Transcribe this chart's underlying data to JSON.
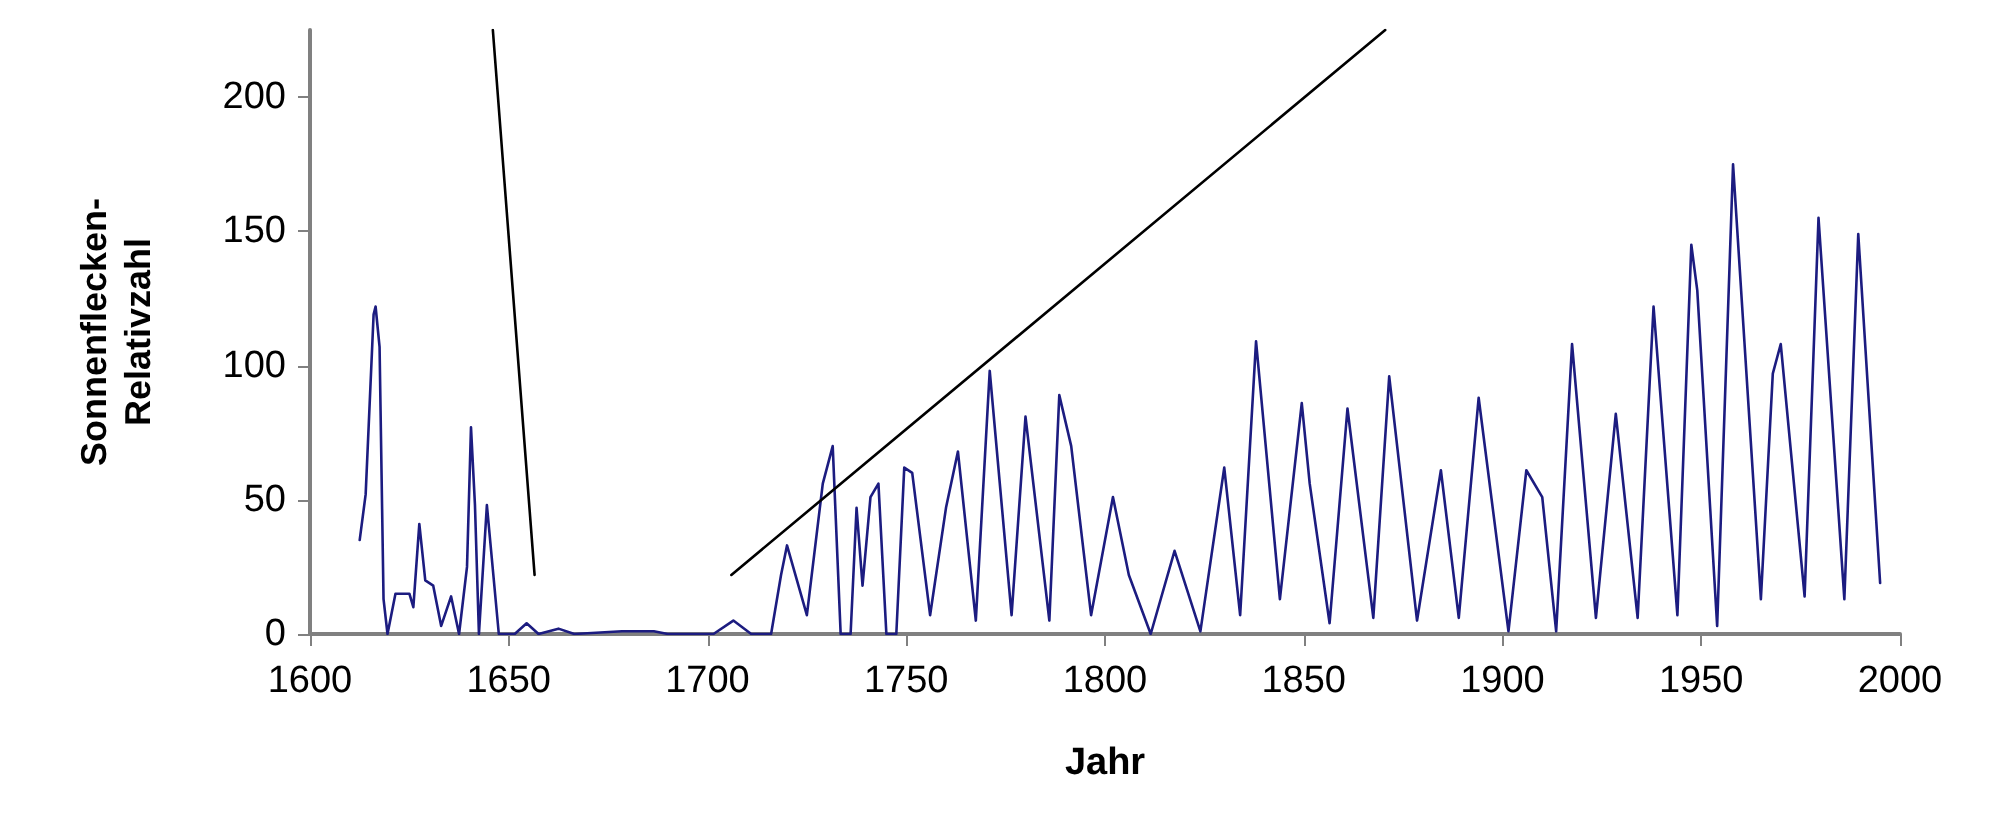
{
  "chart_data": {
    "type": "line",
    "xlabel": "Jahr",
    "ylabel": "Sonnenflecken-\nRelativzahl",
    "xlim": [
      1600,
      2000
    ],
    "xticks": [
      1600,
      1650,
      1700,
      1750,
      1800,
      1850,
      1900,
      1950,
      2000
    ],
    "ylim": [
      0,
      225
    ],
    "yticks": [
      0,
      50,
      100,
      150,
      200
    ],
    "grid": false,
    "marker": "none",
    "line_style": "solid",
    "series": [
      {
        "color": "#1c1c80",
        "x": [
          1612.5,
          1614,
          1616,
          1616.5,
          1617.5,
          1618.5,
          1619.5,
          1621.5,
          1625,
          1626,
          1627.5,
          1629,
          1631,
          1633,
          1635.5,
          1637.5,
          1639.5,
          1640.5,
          1641.5,
          1642.5,
          1644.5,
          1647.5,
          1651.5,
          1654.5,
          1657.5,
          1662.5,
          1666.5,
          1678.5,
          1686.5,
          1690,
          1701.5,
          1706.5,
          1711,
          1716,
          1718.5,
          1720,
          1725,
          1729,
          1731.5,
          1733.5,
          1736,
          1737.5,
          1739,
          1741,
          1743,
          1745,
          1747.5,
          1749.5,
          1751.5,
          1756,
          1760,
          1763,
          1767.5,
          1771,
          1776.5,
          1780,
          1786,
          1788.5,
          1791.5,
          1796.5,
          1802,
          1806,
          1811.5,
          1817.5,
          1824,
          1830,
          1834,
          1838,
          1844,
          1849.5,
          1851.5,
          1856.5,
          1861,
          1867.5,
          1871.5,
          1878.5,
          1884.5,
          1889,
          1894,
          1901.5,
          1906,
          1910,
          1913.5,
          1917.5,
          1923.5,
          1928.5,
          1934,
          1938,
          1944,
          1947.5,
          1949,
          1954,
          1958,
          1965,
          1968,
          1970,
          1976,
          1979.5,
          1986,
          1989.5,
          1995
        ],
        "values": [
          35,
          52,
          119,
          122,
          107,
          13,
          0,
          15,
          15,
          10,
          41,
          20,
          18,
          3,
          14,
          0,
          25,
          77,
          48,
          0,
          48,
          0,
          0,
          4,
          0,
          2,
          0,
          1,
          1,
          0,
          0,
          5,
          0,
          0,
          22,
          33,
          7,
          56,
          70,
          0,
          0,
          47,
          18,
          51,
          56,
          0,
          0,
          62,
          60,
          7,
          47,
          68,
          5,
          98,
          7,
          81,
          5,
          89,
          70,
          7,
          51,
          22,
          0,
          31,
          1,
          62,
          7,
          109,
          13,
          86,
          56,
          4,
          84,
          6,
          96,
          5,
          61,
          6,
          88,
          1,
          61,
          51,
          1,
          108,
          6,
          82,
          6,
          122,
          7,
          145,
          128,
          3,
          175,
          13,
          97,
          108,
          14,
          155,
          13,
          149,
          19
        ]
      },
      {
        "color": "#000000",
        "x": [
          1646,
          1656.5
        ],
        "values": [
          225,
          22
        ]
      },
      {
        "color": "#000000",
        "x": [
          1706,
          1870.5
        ],
        "values": [
          22,
          225
        ]
      }
    ]
  }
}
